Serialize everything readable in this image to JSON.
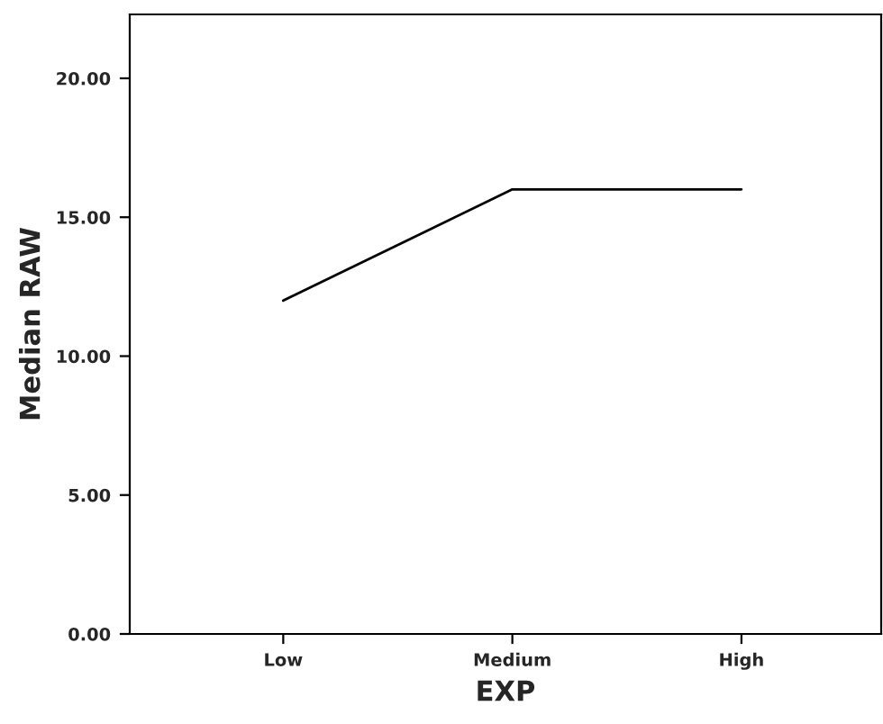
{
  "chart_data": {
    "type": "line",
    "xlabel": "EXP",
    "ylabel": "Median RAW",
    "categories": [
      "Low",
      "Medium",
      "High"
    ],
    "series": [
      {
        "color": "#000000",
        "values": [
          12,
          16,
          16
        ]
      }
    ],
    "ylim": [
      0,
      22.3
    ],
    "yticks": [
      {
        "value": 0,
        "label": "0.00"
      },
      {
        "value": 5,
        "label": "5.00"
      },
      {
        "value": 10,
        "label": "10.00"
      },
      {
        "value": 15,
        "label": "15.00"
      },
      {
        "value": 20,
        "label": "20.00"
      }
    ],
    "grid": false,
    "legend": false,
    "marker": "none",
    "line_style": "solid"
  }
}
